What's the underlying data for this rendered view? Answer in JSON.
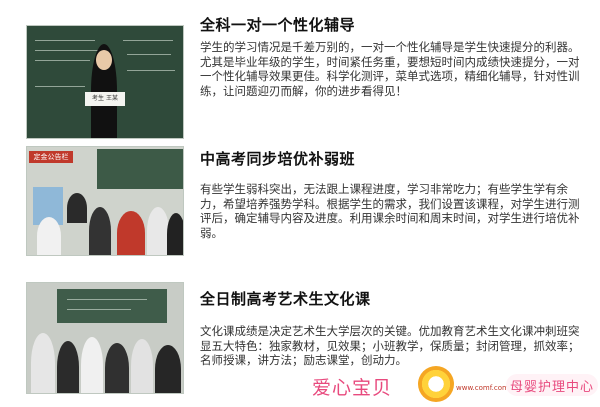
{
  "courses": [
    {
      "title": "全科一对一个性化辅导",
      "description": "学生的学习情况是千差万别的，一对一个性化辅导是学生快速提分的利器。尤其是毕业年级的学生，时间紧任务重，要想短时间内成绩快速提分，一对一个性化辅导效果更佳。科学化测评，菜单式选项，精细化辅导，针对性训练，让问题迎刃而解，你的进步看得见！",
      "photo_sign": "考生 王某"
    },
    {
      "title": "中高考同步培优补弱班",
      "description": "有些学生弱科突出，无法跟上课程进度，学习非常吃力；有些学生学有余力，希望培养强势学科。根据学生的需求，我们设置该课程，对学生进行测评后，确定辅导内容及进度。利用课余时间和周末时间，对学生进行培优补弱。",
      "photo_banner": "定金公告栏"
    },
    {
      "title": "全日制高考艺术生文化课",
      "description": "文化课成绩是决定艺术生大学层次的关键。优加教育艺术生文化课冲刺班突显五大特色：独家教材，见效果；小班教学，保质量；封闭管理，抓效率；名师授课，讲方法；励志课堂，创动力。"
    }
  ],
  "watermark": {
    "brand_1": "爱心宝贝",
    "brand_small": "www.comf.com.cn",
    "brand_2": "母婴护理中心"
  },
  "colors": {
    "title": "#111111",
    "body_text": "#333333",
    "watermark_pink": "#e84a7e",
    "watermark_sun": "#f5a623"
  }
}
